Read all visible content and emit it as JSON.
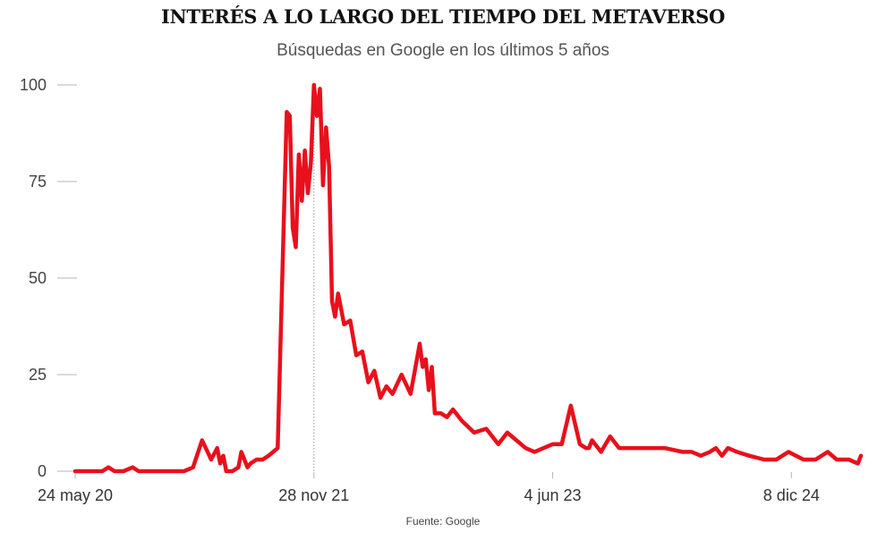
{
  "chart_data": {
    "type": "line",
    "title": "INTERÉS A LO LARGO DEL TIEMPO DEL METAVERSO",
    "subtitle": "Búsquedas en Google en los últimos  5 años",
    "source": "Fuente: Google",
    "xlabel": "",
    "ylabel": "",
    "ylim": [
      0,
      100
    ],
    "yticks": [
      0,
      25,
      50,
      75,
      100
    ],
    "xticks": [
      "24 may 20",
      "28 nov 21",
      "4 jun 23",
      "8 dic 24"
    ],
    "reference_line_at": "28 nov 21",
    "grid": false,
    "color": "#e8101c",
    "series": [
      {
        "name": "",
        "x": [
          "2020-05-24",
          "2020-06-14",
          "2020-07-05",
          "2020-07-26",
          "2020-08-09",
          "2020-08-23",
          "2020-09-13",
          "2020-10-04",
          "2020-10-18",
          "2020-11-08",
          "2020-11-29",
          "2020-12-20",
          "2021-01-10",
          "2021-01-31",
          "2021-02-21",
          "2021-03-14",
          "2021-04-04",
          "2021-04-18",
          "2021-04-25",
          "2021-05-02",
          "2021-05-09",
          "2021-05-16",
          "2021-05-23",
          "2021-06-06",
          "2021-06-13",
          "2021-06-27",
          "2021-07-04",
          "2021-07-18",
          "2021-08-01",
          "2021-08-15",
          "2021-09-05",
          "2021-09-26",
          "2021-10-03",
          "2021-10-10",
          "2021-10-17",
          "2021-10-24",
          "2021-10-31",
          "2021-11-07",
          "2021-11-14",
          "2021-11-21",
          "2021-11-28",
          "2021-12-05",
          "2021-12-12",
          "2021-12-19",
          "2021-12-26",
          "2022-01-02",
          "2022-01-09",
          "2022-01-16",
          "2022-01-23",
          "2022-02-06",
          "2022-02-20",
          "2022-03-06",
          "2022-03-20",
          "2022-04-03",
          "2022-04-17",
          "2022-05-01",
          "2022-05-15",
          "2022-05-29",
          "2022-06-19",
          "2022-07-10",
          "2022-07-31",
          "2022-08-07",
          "2022-08-14",
          "2022-08-21",
          "2022-08-28",
          "2022-09-04",
          "2022-09-18",
          "2022-10-02",
          "2022-10-16",
          "2022-11-06",
          "2022-12-04",
          "2023-01-01",
          "2023-01-29",
          "2023-02-19",
          "2023-03-12",
          "2023-04-02",
          "2023-04-23",
          "2023-05-14",
          "2023-06-04",
          "2023-06-25",
          "2023-07-16",
          "2023-08-06",
          "2023-08-20",
          "2023-08-27",
          "2023-09-03",
          "2023-09-24",
          "2023-10-15",
          "2023-11-05",
          "2023-11-26",
          "2024-01-07",
          "2024-02-18",
          "2024-03-31",
          "2024-04-21",
          "2024-05-12",
          "2024-06-02",
          "2024-06-16",
          "2024-06-30",
          "2024-07-14",
          "2024-08-04",
          "2024-09-01",
          "2024-10-06",
          "2024-11-03",
          "2024-12-01",
          "2025-01-05",
          "2025-02-02",
          "2025-03-02",
          "2025-03-23",
          "2025-04-20",
          "2025-05-11",
          "2025-05-18"
        ],
        "values": [
          0,
          0,
          0,
          0,
          1,
          0,
          0,
          1,
          0,
          0,
          0,
          0,
          0,
          0,
          1,
          8,
          3,
          6,
          2,
          4,
          0,
          0,
          0,
          1,
          5,
          1,
          2,
          3,
          3,
          4,
          6,
          93,
          92,
          63,
          58,
          82,
          70,
          83,
          72,
          80,
          100,
          92,
          99,
          74,
          89,
          79,
          44,
          40,
          46,
          38,
          39,
          30,
          31,
          23,
          26,
          19,
          22,
          20,
          25,
          20,
          33,
          27,
          29,
          21,
          27,
          15,
          15,
          14,
          16,
          13,
          10,
          11,
          7,
          10,
          8,
          6,
          5,
          6,
          7,
          7,
          17,
          7,
          6,
          6,
          8,
          5,
          9,
          6,
          6,
          6,
          6,
          5,
          5,
          4,
          5,
          6,
          4,
          6,
          5,
          4,
          3,
          3,
          5,
          3,
          3,
          5,
          3,
          3,
          2,
          4
        ]
      }
    ]
  }
}
